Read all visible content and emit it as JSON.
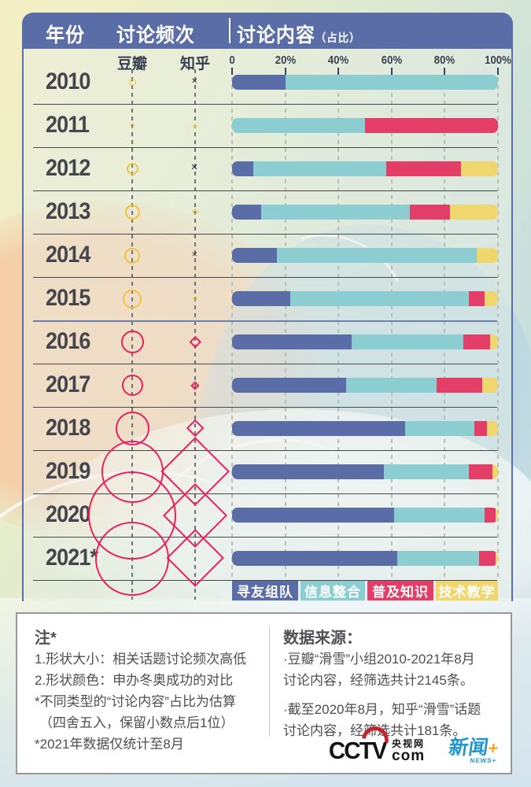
{
  "header": {
    "year_col": "年份",
    "freq_col": "讨论频次",
    "content_col": "讨论内容",
    "content_suffix": "（占比）"
  },
  "subheader": {
    "douban": "豆瓣",
    "zhihu": "知乎"
  },
  "colors": {
    "panel_blue": "#5b6da7",
    "bar_blue": "#5b6da7",
    "bar_teal": "#8ccdd2",
    "bar_pink": "#e23e68",
    "bar_yellow": "#efd66f",
    "marker_yellow": "#f0c341",
    "marker_pink": "#e6215f",
    "marker_black": "#26262e"
  },
  "chart_data": {
    "type": "mixed",
    "axis": {
      "ticks": [
        "0",
        "20%",
        "40%",
        "60%",
        "80%",
        "100%"
      ],
      "range": [
        0,
        100
      ]
    },
    "legend": [
      {
        "label": "寻友组队",
        "color": "#5b6da7"
      },
      {
        "label": "信息整合",
        "color": "#8ccdd2"
      },
      {
        "label": "普及知识",
        "color": "#e23e68"
      },
      {
        "label": "技术教学",
        "color": "#efd66f"
      }
    ],
    "rows": [
      {
        "year": "2010",
        "bar": [
          20,
          80,
          0,
          0
        ],
        "douban": {
          "shape": "circle",
          "size": 9,
          "color": "yellow"
        },
        "zhihu": {
          "shape": "x",
          "size": 10,
          "color": "black"
        }
      },
      {
        "year": "2011",
        "bar": [
          0,
          50,
          50,
          0
        ],
        "douban": {
          "shape": "circle",
          "size": 5,
          "color": "yellow"
        },
        "zhihu": {
          "shape": "dot",
          "size": 4,
          "color": "yellow"
        }
      },
      {
        "year": "2012",
        "bar": [
          8,
          50,
          28,
          14
        ],
        "douban": {
          "shape": "circle",
          "size": 15,
          "color": "yellow"
        },
        "zhihu": {
          "shape": "x",
          "size": 11,
          "color": "black"
        }
      },
      {
        "year": "2013",
        "bar": [
          11,
          56,
          15,
          18
        ],
        "douban": {
          "shape": "circle",
          "size": 19,
          "color": "yellow"
        },
        "zhihu": {
          "shape": "diamond",
          "size": 9,
          "color": "yellow"
        }
      },
      {
        "year": "2014",
        "bar": [
          17,
          75,
          0,
          8
        ],
        "douban": {
          "shape": "circle",
          "size": 20,
          "color": "yellow"
        },
        "zhihu": {
          "shape": "x",
          "size": 9,
          "color": "black"
        }
      },
      {
        "year": "2015",
        "bar": [
          22,
          67,
          6,
          5
        ],
        "douban": {
          "shape": "circle",
          "size": 24,
          "color": "yellow"
        },
        "zhihu": {
          "shape": "diamond",
          "size": 6,
          "color": "yellow"
        }
      },
      {
        "year": "2016",
        "bar": [
          45,
          42,
          10,
          3
        ],
        "douban": {
          "shape": "circle",
          "size": 29,
          "color": "pink"
        },
        "zhihu": {
          "shape": "diamond",
          "size": 15,
          "color": "pink"
        }
      },
      {
        "year": "2017",
        "bar": [
          43,
          34,
          17,
          6
        ],
        "douban": {
          "shape": "circle",
          "size": 27,
          "color": "pink"
        },
        "zhihu": {
          "shape": "diamond",
          "size": 11,
          "color": "pink"
        }
      },
      {
        "year": "2018",
        "bar": [
          65,
          26,
          5,
          4
        ],
        "douban": {
          "shape": "circle",
          "size": 43,
          "color": "pink"
        },
        "zhihu": {
          "shape": "diamond",
          "size": 23,
          "color": "pink"
        }
      },
      {
        "year": "2019",
        "bar": [
          57,
          32,
          9,
          2
        ],
        "douban": {
          "shape": "circle",
          "size": 79,
          "color": "pink"
        },
        "zhihu": {
          "shape": "diamond",
          "size": 88,
          "color": "pink"
        }
      },
      {
        "year": "2020",
        "bar": [
          61,
          34,
          4,
          1
        ],
        "douban": {
          "shape": "circle",
          "size": 112,
          "color": "pink"
        },
        "zhihu": {
          "shape": "diamond",
          "size": 82,
          "color": "pink"
        }
      },
      {
        "year": "2021*",
        "bar": [
          62,
          31,
          6,
          1
        ],
        "douban": {
          "shape": "circle",
          "size": 94,
          "color": "pink"
        },
        "zhihu": {
          "shape": "diamond",
          "size": 74,
          "color": "pink"
        }
      }
    ]
  },
  "notes": {
    "title": "注*",
    "lines": [
      "1.形状大小：相关话题讨论频次高低",
      "2.形状颜色：申办冬奥成功的对比",
      "*不同类型的“讨论内容”占比为估算",
      "（四舍五入，保留小数点后1位）",
      "*2021年数据仅统计至8月"
    ]
  },
  "sources": {
    "title": "数据来源：",
    "items": [
      "·豆瓣“滑雪”小组2010-2021年8月",
      "讨论内容，经筛选共计2145条。",
      "·截至2020年8月，知乎“滑雪”话题",
      "讨论内容，经筛选共计181条。"
    ]
  },
  "logos": {
    "cctv_text": "CCTV",
    "cctv_cn": "央视网",
    "cctv_com": "com",
    "news_cn": "新闻",
    "news_plus": "+",
    "news_sub": "NEWS+"
  }
}
